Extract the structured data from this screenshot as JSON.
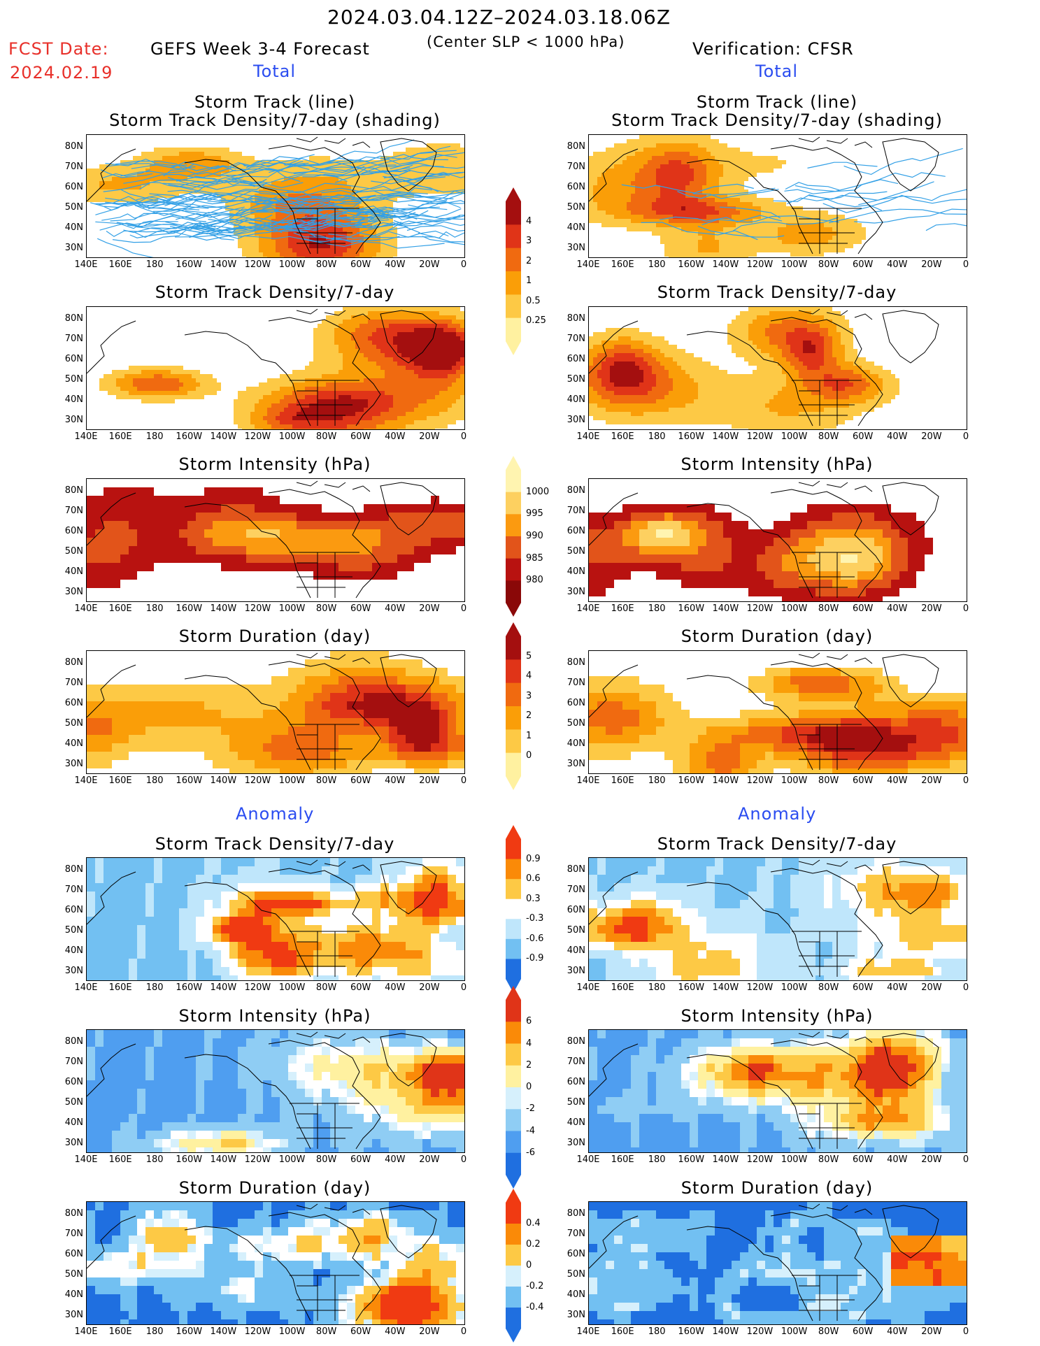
{
  "header": {
    "date_range": "2024.03.04.12Z–2024.03.18.06Z",
    "fcst_label": "FCST Date:",
    "fcst_date": "2024.02.19",
    "left_title": "GEFS Week 3-4 Forecast",
    "criterion": "(Center SLP < 1000 hPa)",
    "right_title": "Verification: CFSR",
    "total_left": "Total",
    "total_right": "Total",
    "anomaly_left": "Anomaly",
    "anomaly_right": "Anomaly"
  },
  "panel_titles": {
    "track_line": "Storm Track (line)",
    "track_density_shading": "Storm Track Density/7-day (shading)",
    "track_density": "Storm Track Density/7-day",
    "intensity": "Storm Intensity (hPa)",
    "duration": "Storm Duration (day)"
  },
  "axes": {
    "lat_labels": [
      "80N",
      "70N",
      "60N",
      "50N",
      "40N",
      "30N"
    ],
    "lon_labels": [
      "140E",
      "160E",
      "180",
      "160W",
      "140W",
      "120W",
      "100W",
      "80W",
      "60W",
      "40W",
      "20W",
      "0"
    ]
  },
  "colorbars": {
    "density": {
      "ticks": [
        "4",
        "3",
        "2",
        "1",
        "0.5",
        "0.25"
      ],
      "colors": [
        "#a40f0f",
        "#e03418",
        "#f06a10",
        "#fa9e08",
        "#fdc945",
        "#fff1a0"
      ]
    },
    "intensity": {
      "ticks": [
        "1000",
        "995",
        "990",
        "985",
        "980"
      ],
      "colors": [
        "#fff4b0",
        "#fdd060",
        "#fb9a10",
        "#e2541a",
        "#b81210",
        "#8a0808"
      ]
    },
    "duration": {
      "ticks": [
        "5",
        "4",
        "3",
        "2",
        "1",
        "0"
      ],
      "colors": [
        "#a40f0f",
        "#e03418",
        "#f06a10",
        "#fa9e08",
        "#fdc945",
        "#fff1a0"
      ]
    },
    "anom_density": {
      "ticks": [
        "0.9",
        "0.6",
        "0.3",
        "-0.3",
        "-0.6",
        "-0.9"
      ],
      "colors": [
        "#f03a12",
        "#fa8a08",
        "#fdc945",
        "#ffffff",
        "#bfe6fb",
        "#72c0f2",
        "#1f6fe0"
      ]
    },
    "anom_intensity": {
      "ticks": [
        "6",
        "4",
        "2",
        "0",
        "-2",
        "-4",
        "-6"
      ],
      "colors": [
        "#e03418",
        "#fa8a08",
        "#fdc945",
        "#fff1a0",
        "#d6f0fc",
        "#8fcdf4",
        "#4f9ef0",
        "#1f6fe0"
      ]
    },
    "anom_duration": {
      "ticks": [
        "0.4",
        "0.2",
        "0",
        "-0.2",
        "-0.4"
      ],
      "colors": [
        "#f03a12",
        "#fa8a08",
        "#fdc945",
        "#d6f0fc",
        "#72c0f2",
        "#1f6fe0"
      ]
    }
  }
}
